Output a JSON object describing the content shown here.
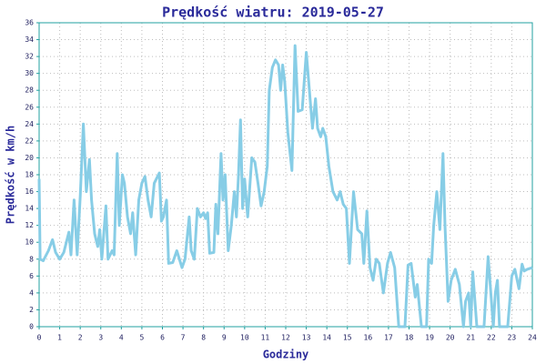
{
  "chart_data": {
    "type": "line",
    "title": "Prędkość wiatru: 2019-05-27",
    "xlabel": "Godziny",
    "ylabel": "Prędkość w km/h",
    "xlim": [
      0,
      24
    ],
    "xticks": [
      0,
      1,
      2,
      3,
      4,
      5,
      6,
      7,
      8,
      9,
      10,
      11,
      12,
      13,
      14,
      15,
      16,
      17,
      18,
      19,
      20,
      21,
      22,
      23,
      24
    ],
    "ylim": [
      0,
      36
    ],
    "yticks": [
      0,
      2,
      4,
      6,
      8,
      10,
      12,
      14,
      16,
      18,
      20,
      22,
      24,
      26,
      28,
      30,
      32,
      34,
      36
    ],
    "grid": true,
    "series": [
      {
        "name": "Prędkość wiatru",
        "color": "#87cde6",
        "x": [
          0,
          0.05,
          0.2,
          0.45,
          0.65,
          0.8,
          1.0,
          1.2,
          1.45,
          1.55,
          1.7,
          1.85,
          2.0,
          2.15,
          2.3,
          2.45,
          2.55,
          2.7,
          2.85,
          2.95,
          3.05,
          3.25,
          3.35,
          3.55,
          3.65,
          3.8,
          3.9,
          4.05,
          4.15,
          4.3,
          4.45,
          4.55,
          4.7,
          4.85,
          5.0,
          5.15,
          5.3,
          5.45,
          5.6,
          5.85,
          5.95,
          6.05,
          6.2,
          6.3,
          6.5,
          6.7,
          6.95,
          7.1,
          7.3,
          7.4,
          7.55,
          7.7,
          7.85,
          8.0,
          8.1,
          8.2,
          8.3,
          8.5,
          8.6,
          8.7,
          8.85,
          8.95,
          9.05,
          9.2,
          9.35,
          9.5,
          9.6,
          9.7,
          9.8,
          9.9,
          10.0,
          10.15,
          10.35,
          10.5,
          10.65,
          10.8,
          10.95,
          11.1,
          11.2,
          11.35,
          11.5,
          11.65,
          11.75,
          11.85,
          11.95,
          12.1,
          12.3,
          12.45,
          12.6,
          12.8,
          13.0,
          13.15,
          13.3,
          13.45,
          13.55,
          13.7,
          13.8,
          13.95,
          14.1,
          14.3,
          14.5,
          14.65,
          14.8,
          14.95,
          15.1,
          15.3,
          15.5,
          15.7,
          15.8,
          15.95,
          16.1,
          16.25,
          16.4,
          16.55,
          16.75,
          16.95,
          17.1,
          17.3,
          17.5,
          17.8,
          17.95,
          18.1,
          18.3,
          18.4,
          18.6,
          18.85,
          18.95,
          19.1,
          19.2,
          19.35,
          19.5,
          19.65,
          19.75,
          19.9,
          20.05,
          20.25,
          20.45,
          20.65,
          20.75,
          20.9,
          21.0,
          21.1,
          21.3,
          21.65,
          21.85,
          21.95,
          22.1,
          22.2,
          22.3,
          22.4,
          22.8,
          23.0,
          23.15,
          23.35,
          23.5,
          23.6,
          23.75,
          24.0
        ],
        "values": [
          17.5,
          8,
          7.8,
          9,
          10.3,
          8.8,
          8,
          8.8,
          11.2,
          8.5,
          15,
          8.5,
          15.5,
          24,
          16,
          19.8,
          15,
          11,
          9.5,
          11.5,
          8,
          14.3,
          8,
          9,
          8.5,
          20.5,
          12,
          18,
          17,
          13,
          11,
          13.5,
          8.5,
          15,
          17,
          17.8,
          15,
          13,
          17,
          18.2,
          12.5,
          13,
          15,
          7.5,
          7.6,
          9,
          7,
          8,
          13,
          9,
          8,
          14,
          13,
          13.5,
          12.8,
          13.5,
          8.7,
          8.8,
          14.5,
          11,
          20.5,
          15,
          18,
          9,
          12,
          16,
          13,
          18,
          24.5,
          14,
          17.5,
          13,
          20,
          19.5,
          17,
          14.3,
          16,
          19,
          28,
          30.7,
          31.6,
          31,
          28,
          31,
          29,
          23,
          18.5,
          33.3,
          25.5,
          25.7,
          32.5,
          28,
          23.5,
          27,
          23.5,
          22.5,
          23.5,
          22.5,
          19,
          16,
          15,
          16,
          14.5,
          14,
          7.5,
          16,
          11.5,
          11,
          7.5,
          13.7,
          7,
          5.5,
          8,
          7.5,
          4,
          7.5,
          8.8,
          7,
          0,
          0,
          7.3,
          7.5,
          3.5,
          5,
          0,
          0,
          8,
          7.5,
          12,
          16,
          11.5,
          20.5,
          12,
          3,
          5.5,
          6.8,
          5,
          0,
          3,
          4,
          0,
          6.5,
          0,
          0,
          8.3,
          5,
          0,
          4,
          5.5,
          0,
          0,
          6,
          6.8,
          4.5,
          7.4,
          6.6,
          6.8,
          7
        ]
      }
    ]
  }
}
